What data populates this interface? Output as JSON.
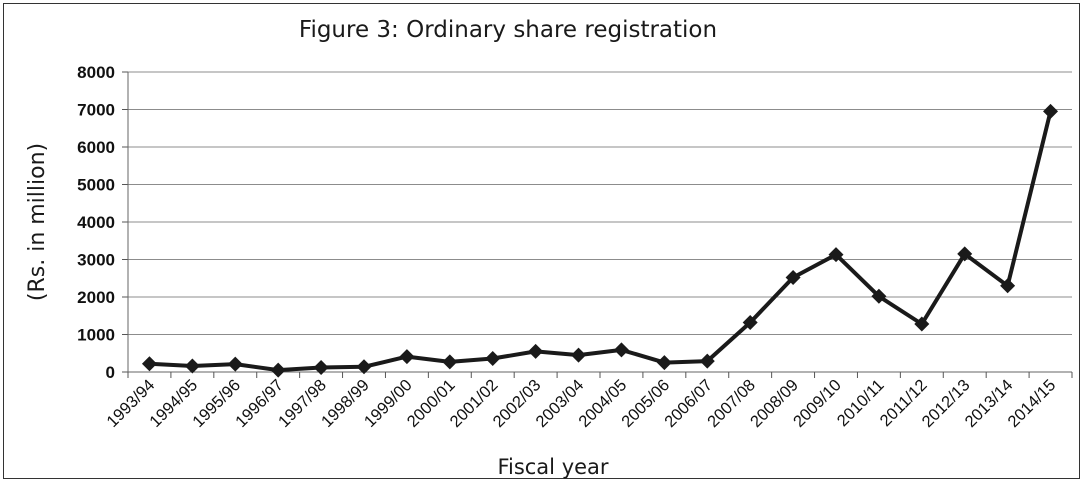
{
  "chart_data": {
    "type": "line",
    "title": "Figure 3: Ordinary share registration",
    "xlabel": "Fiscal year",
    "ylabel": "(Rs. in million)",
    "ylim": [
      0,
      8000
    ],
    "yticks": [
      0,
      1000,
      2000,
      3000,
      4000,
      5000,
      6000,
      7000,
      8000
    ],
    "grid": true,
    "legend": "none",
    "categories": [
      "1993/94",
      "1994/95",
      "1995/96",
      "1996/97",
      "1997/98",
      "1998/99",
      "1999/00",
      "2000/01",
      "2001/02",
      "2002/03",
      "2003/04",
      "2004/05",
      "2005/06",
      "2006/07",
      "2007/08",
      "2008/09",
      "2009/10",
      "2010/11",
      "2011/12",
      "2012/13",
      "2013/14",
      "2014/15"
    ],
    "series": [
      {
        "values": [
          220,
          160,
          210,
          50,
          120,
          140,
          410,
          270,
          360,
          550,
          450,
          590,
          250,
          290,
          1320,
          2520,
          3130,
          2020,
          1280,
          3150,
          2300,
          6950
        ],
        "color": "#1a1a1a",
        "marker": "diamond"
      }
    ]
  }
}
